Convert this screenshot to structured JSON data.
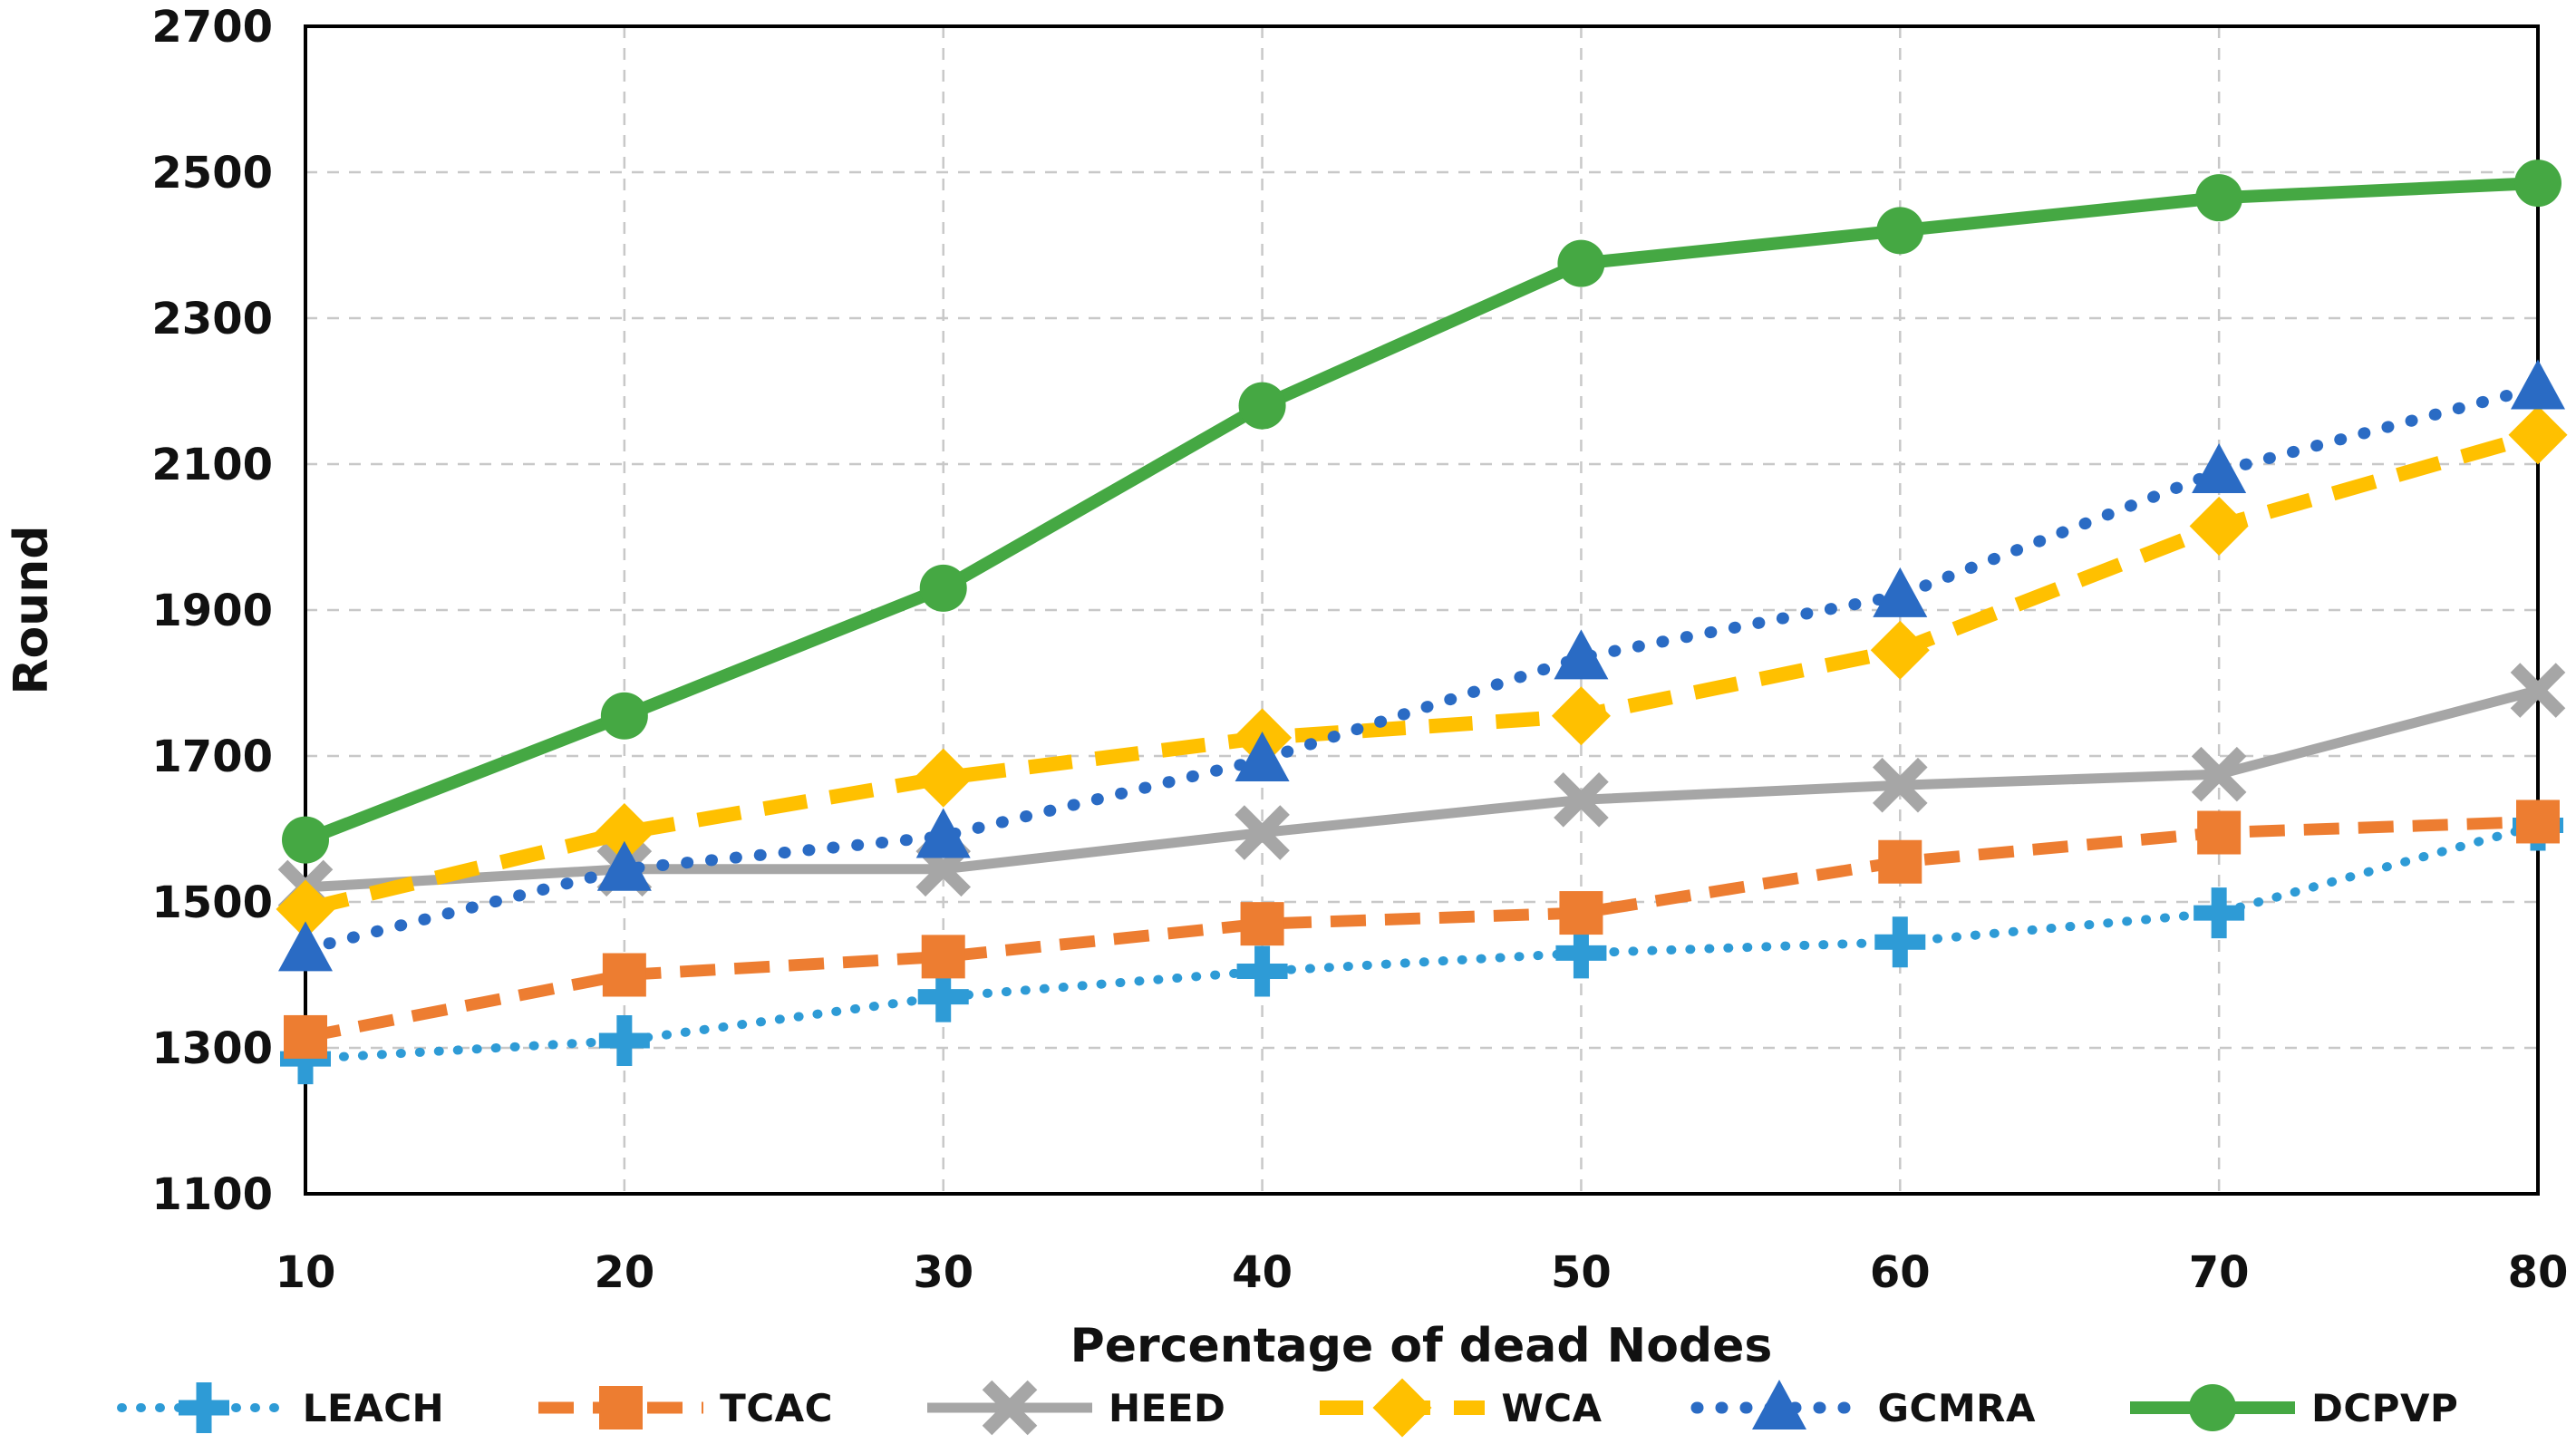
{
  "chart_data": {
    "type": "line",
    "title": "",
    "xlabel": "Percentage of dead Nodes",
    "ylabel": "Round",
    "x": [
      10,
      20,
      30,
      40,
      50,
      60,
      70,
      80
    ],
    "xlim": [
      10,
      80
    ],
    "ylim": [
      1100,
      2700
    ],
    "yticks": [
      1100,
      1300,
      1500,
      1700,
      1900,
      2100,
      2300,
      2500,
      2700
    ],
    "xticks": [
      10,
      20,
      30,
      40,
      50,
      60,
      70,
      80
    ],
    "grid": "dashed horizontal and vertical gridlines, full black frame",
    "legend_position": "bottom",
    "colors": {
      "grid": "#c8c8c8",
      "frame": "#000000",
      "text": "#111111"
    },
    "series": [
      {
        "name": "LEACH",
        "color": "#2E9BD6",
        "line_style": "dotted",
        "marker": "plus",
        "values": [
          1285,
          1310,
          1370,
          1405,
          1430,
          1445,
          1485,
          1605
        ]
      },
      {
        "name": "TCAC",
        "color": "#ED7D31",
        "line_style": "dashed",
        "marker": "square",
        "values": [
          1315,
          1400,
          1425,
          1470,
          1485,
          1555,
          1595,
          1610
        ]
      },
      {
        "name": "HEED",
        "color": "#A6A6A6",
        "line_style": "solid",
        "marker": "x",
        "values": [
          1520,
          1545,
          1545,
          1595,
          1640,
          1660,
          1675,
          1790
        ]
      },
      {
        "name": "WCA",
        "color": "#FFC000",
        "line_style": "dashed",
        "marker": "diamond",
        "values": [
          1490,
          1595,
          1670,
          1725,
          1755,
          1845,
          2015,
          2140
        ]
      },
      {
        "name": "GCMRA",
        "color": "#2A6BC4",
        "line_style": "dotted",
        "marker": "triangle",
        "values": [
          1435,
          1545,
          1590,
          1695,
          1835,
          1920,
          2090,
          2205
        ]
      },
      {
        "name": "DCPVP",
        "color": "#45A843",
        "line_style": "solid",
        "marker": "circle",
        "values": [
          1585,
          1755,
          1930,
          2180,
          2375,
          2420,
          2465,
          2485
        ]
      }
    ]
  }
}
